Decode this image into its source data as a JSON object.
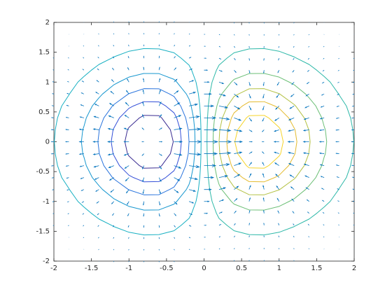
{
  "chart_data": {
    "type": "contour-quiver",
    "x": [
      -2,
      -1.8,
      -1.6,
      -1.4,
      -1.2,
      -1,
      -0.8,
      -0.6,
      -0.4,
      -0.2,
      0,
      0.2,
      0.4,
      0.6,
      0.8,
      1,
      1.2,
      1.4,
      1.6,
      1.8,
      2
    ],
    "y": [
      -2,
      -1.8,
      -1.6,
      -1.4,
      -1.2,
      -1,
      -0.8,
      -0.6,
      -0.4,
      -0.2,
      0,
      0.2,
      0.4,
      0.6,
      0.8,
      1,
      1.2,
      1.4,
      1.6,
      1.8,
      2
    ],
    "z": [
      [
        -0.001,
        -0.001,
        -0.002,
        -0.004,
        -0.005,
        -0.007,
        -0.008,
        -0.008,
        -0.006,
        -0.004,
        0,
        0.004,
        0.006,
        0.008,
        0.008,
        0.007,
        0.005,
        0.004,
        0.002,
        0.001,
        0.001
      ],
      [
        -0.001,
        -0.003,
        -0.005,
        -0.008,
        -0.011,
        -0.014,
        -0.017,
        -0.016,
        -0.013,
        -0.008,
        0,
        0.008,
        0.013,
        0.016,
        0.017,
        0.014,
        0.011,
        0.008,
        0.005,
        0.003,
        0.001
      ],
      [
        -0.003,
        -0.005,
        -0.01,
        -0.015,
        -0.022,
        -0.028,
        -0.033,
        -0.032,
        -0.026,
        -0.015,
        0,
        0.015,
        0.026,
        0.032,
        0.033,
        0.028,
        0.022,
        0.015,
        0.01,
        0.005,
        0.003
      ],
      [
        -0.005,
        -0.01,
        -0.017,
        -0.028,
        -0.04,
        -0.052,
        -0.059,
        -0.059,
        -0.048,
        -0.027,
        0,
        0.027,
        0.048,
        0.059,
        0.059,
        0.052,
        0.04,
        0.028,
        0.017,
        0.01,
        0.005
      ],
      [
        -0.009,
        -0.017,
        -0.029,
        -0.047,
        -0.067,
        -0.087,
        -0.1,
        -0.099,
        -0.081,
        -0.046,
        0,
        0.046,
        0.081,
        0.099,
        0.1,
        0.087,
        0.067,
        0.047,
        0.029,
        0.017,
        0.009
      ],
      [
        -0.013,
        -0.026,
        -0.046,
        -0.073,
        -0.105,
        -0.135,
        -0.155,
        -0.154,
        -0.125,
        -0.071,
        0,
        0.071,
        0.125,
        0.154,
        0.155,
        0.135,
        0.105,
        0.073,
        0.046,
        0.026,
        0.013
      ],
      [
        -0.019,
        -0.037,
        -0.065,
        -0.104,
        -0.15,
        -0.194,
        -0.222,
        -0.221,
        -0.18,
        -0.101,
        0,
        0.101,
        0.18,
        0.221,
        0.222,
        0.194,
        0.15,
        0.104,
        0.065,
        0.037,
        0.019
      ],
      [
        -0.026,
        -0.049,
        -0.086,
        -0.138,
        -0.198,
        -0.257,
        -0.294,
        -0.292,
        -0.238,
        -0.134,
        0,
        0.134,
        0.238,
        0.292,
        0.294,
        0.257,
        0.198,
        0.138,
        0.086,
        0.049,
        0.026
      ],
      [
        -0.031,
        -0.06,
        -0.105,
        -0.168,
        -0.242,
        -0.313,
        -0.359,
        -0.357,
        -0.29,
        -0.164,
        0,
        0.164,
        0.29,
        0.357,
        0.359,
        0.313,
        0.242,
        0.168,
        0.105,
        0.06,
        0.031
      ],
      [
        -0.035,
        -0.068,
        -0.119,
        -0.19,
        -0.273,
        -0.353,
        -0.405,
        -0.402,
        -0.327,
        -0.185,
        0,
        0.185,
        0.327,
        0.402,
        0.405,
        0.353,
        0.273,
        0.19,
        0.119,
        0.068,
        0.035
      ],
      [
        -0.037,
        -0.071,
        -0.124,
        -0.197,
        -0.284,
        -0.368,
        -0.422,
        -0.419,
        -0.341,
        -0.192,
        0,
        0.192,
        0.341,
        0.419,
        0.422,
        0.368,
        0.284,
        0.197,
        0.124,
        0.071,
        0.037
      ],
      [
        -0.035,
        -0.068,
        -0.119,
        -0.19,
        -0.273,
        -0.353,
        -0.405,
        -0.402,
        -0.327,
        -0.185,
        0,
        0.185,
        0.327,
        0.402,
        0.405,
        0.353,
        0.273,
        0.19,
        0.119,
        0.068,
        0.035
      ],
      [
        -0.031,
        -0.06,
        -0.105,
        -0.168,
        -0.242,
        -0.313,
        -0.359,
        -0.357,
        -0.29,
        -0.164,
        0,
        0.164,
        0.29,
        0.357,
        0.359,
        0.313,
        0.242,
        0.168,
        0.105,
        0.06,
        0.031
      ],
      [
        -0.026,
        -0.049,
        -0.086,
        -0.138,
        -0.198,
        -0.257,
        -0.294,
        -0.292,
        -0.238,
        -0.134,
        0,
        0.134,
        0.238,
        0.292,
        0.294,
        0.257,
        0.198,
        0.138,
        0.086,
        0.049,
        0.026
      ],
      [
        -0.019,
        -0.037,
        -0.065,
        -0.104,
        -0.15,
        -0.194,
        -0.222,
        -0.221,
        -0.18,
        -0.101,
        0,
        0.101,
        0.18,
        0.221,
        0.222,
        0.194,
        0.15,
        0.104,
        0.065,
        0.037,
        0.019
      ],
      [
        -0.013,
        -0.026,
        -0.046,
        -0.073,
        -0.105,
        -0.135,
        -0.155,
        -0.154,
        -0.125,
        -0.071,
        0,
        0.071,
        0.125,
        0.154,
        0.155,
        0.135,
        0.105,
        0.073,
        0.046,
        0.026,
        0.013
      ],
      [
        -0.009,
        -0.017,
        -0.029,
        -0.047,
        -0.067,
        -0.087,
        -0.1,
        -0.099,
        -0.081,
        -0.046,
        0,
        0.046,
        0.081,
        0.099,
        0.1,
        0.087,
        0.067,
        0.047,
        0.029,
        0.017,
        0.009
      ],
      [
        -0.005,
        -0.01,
        -0.017,
        -0.028,
        -0.04,
        -0.052,
        -0.059,
        -0.059,
        -0.048,
        -0.027,
        0,
        0.027,
        0.048,
        0.059,
        0.059,
        0.052,
        0.04,
        0.028,
        0.017,
        0.01,
        0.005
      ],
      [
        -0.003,
        -0.005,
        -0.01,
        -0.015,
        -0.022,
        -0.028,
        -0.033,
        -0.032,
        -0.026,
        -0.015,
        0,
        0.015,
        0.026,
        0.032,
        0.033,
        0.028,
        0.022,
        0.015,
        0.01,
        0.005,
        0.003
      ],
      [
        -0.001,
        -0.003,
        -0.005,
        -0.008,
        -0.011,
        -0.014,
        -0.017,
        -0.016,
        -0.013,
        -0.008,
        0,
        0.008,
        0.013,
        0.016,
        0.017,
        0.014,
        0.011,
        0.008,
        0.005,
        0.003,
        0.001
      ],
      [
        -0.001,
        -0.001,
        -0.002,
        -0.004,
        -0.005,
        -0.007,
        -0.008,
        -0.008,
        -0.006,
        -0.004,
        0,
        0.004,
        0.006,
        0.008,
        0.008,
        0.007,
        0.005,
        0.004,
        0.002,
        0.001,
        0.001
      ]
    ],
    "levels": [
      -0.345,
      -0.268,
      -0.192,
      -0.115,
      -0.038,
      0.038,
      0.115,
      0.192,
      0.268,
      0.345
    ],
    "colors": [
      "#3a2c92",
      "#3550d8",
      "#2a74dd",
      "#1797cf",
      "#18b0c2",
      "#2db8a8",
      "#6cbf76",
      "#b3c143",
      "#e4bb30",
      "#f6d42a"
    ],
    "quiver_color": "#0072bd",
    "xlim": [
      -2,
      2
    ],
    "ylim": [
      -2,
      2
    ],
    "xticks": [
      -2,
      -1.5,
      -1,
      -0.5,
      0,
      0.5,
      1,
      1.5,
      2
    ],
    "yticks": [
      -2,
      -1.5,
      -1,
      -0.5,
      0,
      0.5,
      1,
      1.5,
      2
    ]
  }
}
